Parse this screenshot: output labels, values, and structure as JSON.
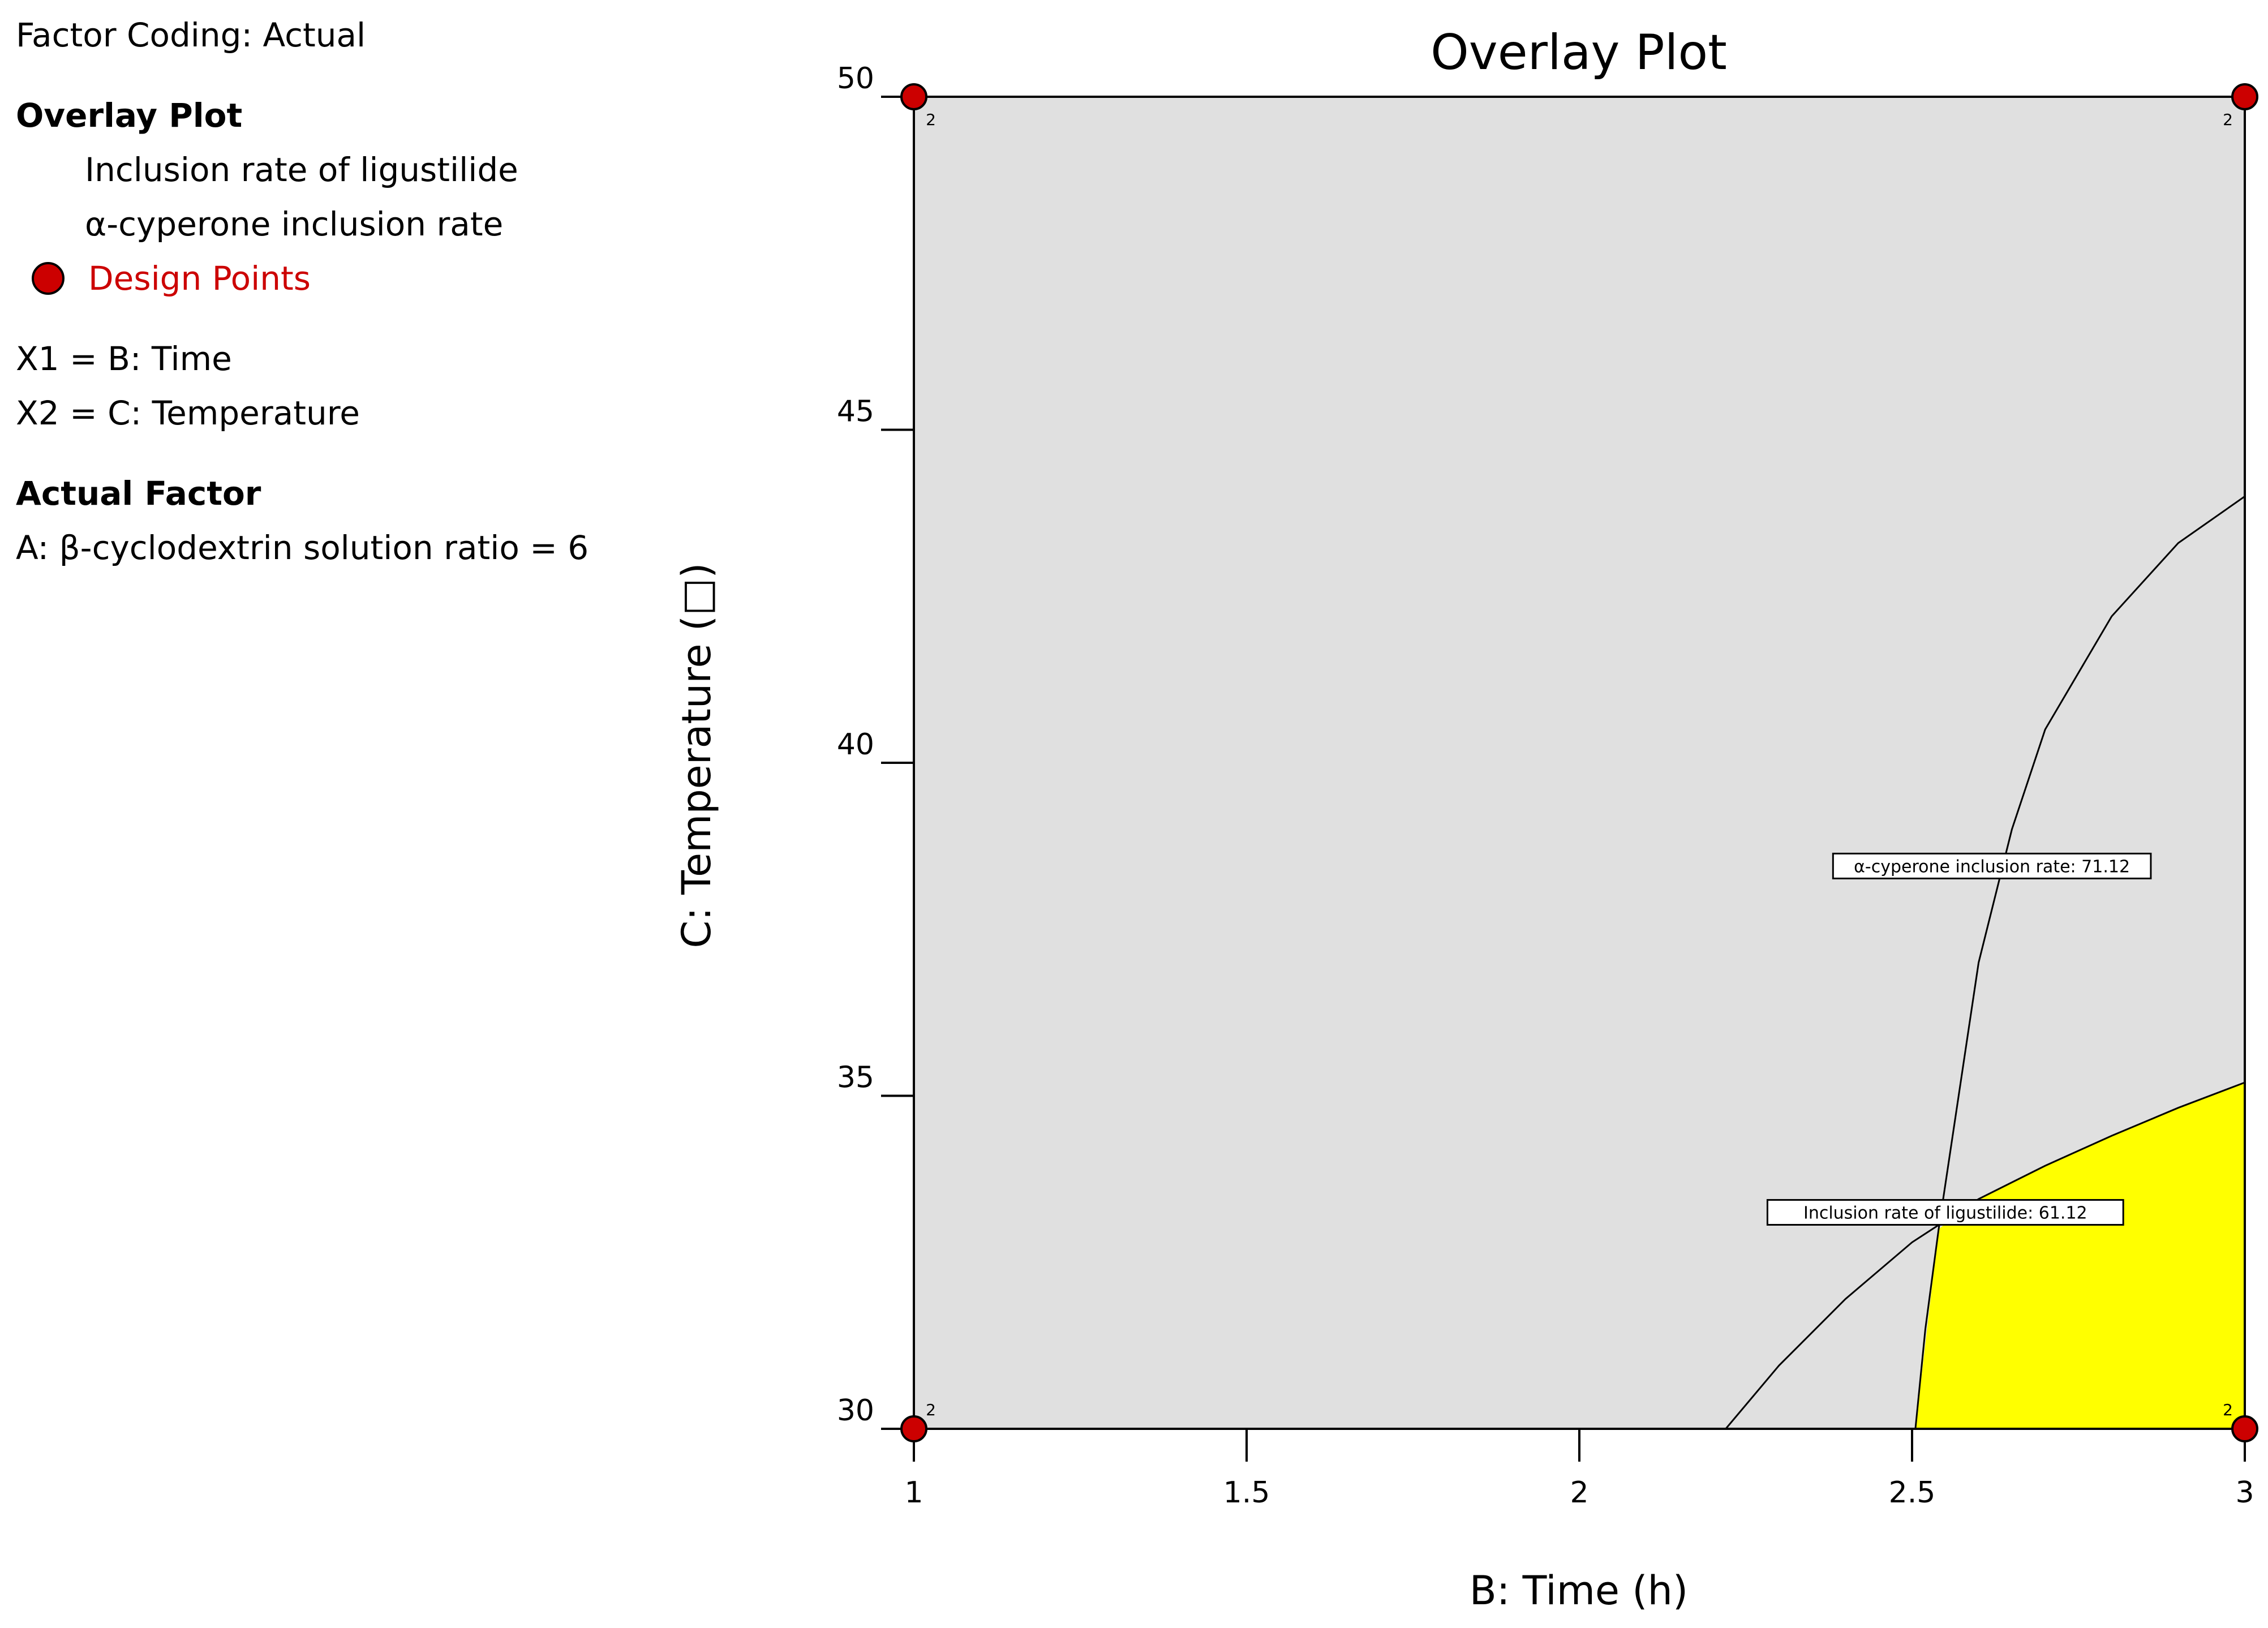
{
  "legend": {
    "factor_coding": "Factor Coding: Actual",
    "overlay_heading": "Overlay Plot",
    "responses": [
      "Inclusion rate of ligustilide",
      "α-cyperone inclusion rate"
    ],
    "design_points_label": "Design Points",
    "design_points_color": "#cc0000",
    "x1": "X1 = B: Time",
    "x2": "X2 = C: Temperature",
    "actual_factor_heading": "Actual Factor",
    "actual_factor_value": "A: β-cyclodextrin solution ratio = 6"
  },
  "chart_data": {
    "type": "contour",
    "title": "Overlay Plot",
    "xlabel": "B: Time (h)",
    "ylabel": "C: Temperature (□)",
    "xlim": [
      1,
      3
    ],
    "ylim": [
      30,
      50
    ],
    "x_ticks": [
      1,
      1.5,
      2,
      2.5,
      3
    ],
    "x_tick_labels": [
      "1",
      "1.5",
      "2",
      "2.5",
      "3"
    ],
    "y_ticks": [
      30,
      35,
      40,
      45,
      50
    ],
    "y_tick_labels": [
      "30",
      "35",
      "40",
      "45",
      "50"
    ],
    "background_color": "#e0e0e0",
    "feasible_region_color": "#ffff00",
    "contours": [
      {
        "name": "Inclusion rate of ligustilide",
        "label": "Inclusion rate of ligustilide: 61.12",
        "label_at": [
          2.55,
          33.25
        ],
        "points": [
          [
            2.22,
            30.0
          ],
          [
            2.3,
            30.95
          ],
          [
            2.4,
            31.95
          ],
          [
            2.5,
            32.8
          ],
          [
            2.6,
            33.45
          ],
          [
            2.7,
            33.95
          ],
          [
            2.8,
            34.4
          ],
          [
            2.9,
            34.82
          ],
          [
            3.0,
            35.2
          ]
        ]
      },
      {
        "name": "α-cyperone inclusion rate",
        "label": "α-cyperone inclusion rate: 71.12",
        "label_at": [
          2.62,
          38.45
        ],
        "points": [
          [
            2.505,
            30.0
          ],
          [
            2.52,
            31.5
          ],
          [
            2.54,
            33.0
          ],
          [
            2.57,
            35.0
          ],
          [
            2.6,
            37.0
          ],
          [
            2.65,
            39.0
          ],
          [
            2.7,
            40.5
          ],
          [
            2.8,
            42.2
          ],
          [
            2.9,
            43.3
          ],
          [
            3.0,
            44.0
          ]
        ]
      }
    ],
    "feasible_region": [
      [
        2.505,
        30.0
      ],
      [
        2.54,
        33.0
      ],
      [
        2.6,
        33.45
      ],
      [
        2.7,
        33.95
      ],
      [
        2.8,
        34.4
      ],
      [
        2.9,
        34.82
      ],
      [
        3.0,
        35.2
      ],
      [
        3.0,
        30.0
      ]
    ],
    "design_points": [
      {
        "x": 1,
        "y": 50,
        "count": "2"
      },
      {
        "x": 3,
        "y": 50,
        "count": "2"
      },
      {
        "x": 1,
        "y": 30,
        "count": "2"
      },
      {
        "x": 3,
        "y": 30,
        "count": "2"
      }
    ]
  }
}
